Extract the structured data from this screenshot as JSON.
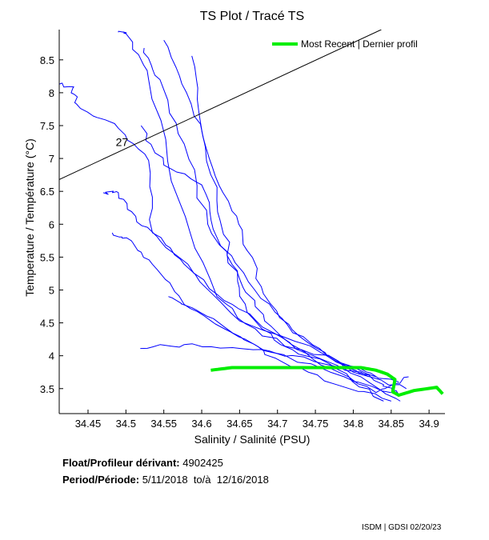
{
  "chart_data": {
    "type": "line",
    "title": "TS Plot / Tracé TS",
    "xlabel": "Salinity / Salinité (PSU)",
    "ylabel": "Temperature / Température (°C)",
    "xlim": [
      34.412,
      34.921
    ],
    "ylim": [
      3.12,
      8.96
    ],
    "xticks": [
      "34.45",
      "34.5",
      "34.55",
      "34.6",
      "34.65",
      "34.7",
      "34.75",
      "34.8",
      "34.85",
      "34.9"
    ],
    "yticks": [
      "3.5",
      "4",
      "4.5",
      "5",
      "5.5",
      "6",
      "6.5",
      "7",
      "7.5",
      "8",
      "8.5"
    ],
    "grid": false,
    "legend": {
      "position": "top-right",
      "entries": [
        {
          "name": "Most Recent | Dernier profil",
          "color": "#00ee00"
        }
      ]
    },
    "density_contour": {
      "label": "27",
      "points": [
        [
          34.412,
          6.68
        ],
        [
          34.837,
          8.96
        ]
      ],
      "label_at": [
        34.495,
        7.25
      ]
    },
    "series": [
      {
        "name": "profile",
        "color": "#0000ff",
        "points": [
          [
            34.49,
            8.92
          ],
          [
            34.5,
            8.9
          ],
          [
            34.53,
            8.2
          ],
          [
            34.57,
            6.36
          ],
          [
            34.62,
            4.9
          ],
          [
            34.68,
            4.3
          ],
          [
            34.78,
            3.92
          ],
          [
            34.84,
            3.56
          ],
          [
            34.86,
            3.4
          ]
        ]
      },
      {
        "name": "profile",
        "color": "#0000ff",
        "points": [
          [
            34.412,
            8.13
          ],
          [
            34.43,
            8.07
          ],
          [
            34.44,
            7.76
          ],
          [
            34.49,
            7.46
          ],
          [
            34.53,
            6.97
          ],
          [
            34.535,
            5.87
          ],
          [
            34.577,
            5.39
          ],
          [
            34.65,
            4.53
          ],
          [
            34.757,
            4.05
          ],
          [
            34.83,
            3.68
          ]
        ]
      },
      {
        "name": "profile",
        "color": "#0000ff",
        "points": [
          [
            34.47,
            6.48
          ],
          [
            34.49,
            6.48
          ],
          [
            34.513,
            6.12
          ],
          [
            34.545,
            5.75
          ],
          [
            34.61,
            5.02
          ],
          [
            34.672,
            4.53
          ],
          [
            34.735,
            4.05
          ],
          [
            34.82,
            3.68
          ]
        ]
      },
      {
        "name": "profile",
        "color": "#0000ff",
        "points": [
          [
            34.482,
            5.87
          ],
          [
            34.507,
            5.75
          ],
          [
            34.535,
            5.39
          ],
          [
            34.577,
            4.78
          ],
          [
            34.63,
            4.41
          ],
          [
            34.693,
            4.05
          ],
          [
            34.788,
            3.68
          ],
          [
            34.85,
            3.44
          ]
        ]
      },
      {
        "name": "profile",
        "color": "#0000ff",
        "points": [
          [
            34.519,
            4.11
          ],
          [
            34.577,
            4.17
          ],
          [
            34.651,
            4.11
          ],
          [
            34.735,
            3.98
          ],
          [
            34.81,
            3.68
          ],
          [
            34.862,
            3.31
          ]
        ]
      },
      {
        "name": "profile",
        "color": "#0000ff",
        "points": [
          [
            34.587,
            8.56
          ],
          [
            34.598,
            7.58
          ],
          [
            34.62,
            6.36
          ],
          [
            34.64,
            5.39
          ],
          [
            34.66,
            4.66
          ],
          [
            34.704,
            4.17
          ],
          [
            34.778,
            3.8
          ],
          [
            34.84,
            3.31
          ]
        ]
      },
      {
        "name": "profile",
        "color": "#0000ff",
        "points": [
          [
            34.524,
            8.68
          ],
          [
            34.545,
            8.2
          ],
          [
            34.577,
            7.22
          ],
          [
            34.608,
            6.0
          ],
          [
            34.651,
            5.14
          ],
          [
            34.683,
            4.53
          ],
          [
            34.757,
            3.86
          ],
          [
            34.83,
            3.44
          ],
          [
            34.873,
            3.68
          ]
        ]
      },
      {
        "name": "profile",
        "color": "#0000ff",
        "points": [
          [
            34.556,
            4.9
          ],
          [
            34.598,
            4.66
          ],
          [
            34.651,
            4.29
          ],
          [
            34.704,
            3.92
          ],
          [
            34.778,
            3.56
          ],
          [
            34.85,
            3.31
          ]
        ]
      },
      {
        "name": "profile",
        "color": "#0000ff",
        "points": [
          [
            34.55,
            8.8
          ],
          [
            34.58,
            8.0
          ],
          [
            34.61,
            7.0
          ],
          [
            34.64,
            6.2
          ],
          [
            34.66,
            5.6
          ],
          [
            34.69,
            4.8
          ],
          [
            34.74,
            4.2
          ],
          [
            34.8,
            3.75
          ],
          [
            34.87,
            3.5
          ]
        ]
      },
      {
        "name": "profile",
        "color": "#0000ff",
        "points": [
          [
            34.52,
            7.5
          ],
          [
            34.55,
            6.9
          ],
          [
            34.6,
            6.6
          ],
          [
            34.62,
            5.8
          ],
          [
            34.67,
            5.0
          ],
          [
            34.72,
            4.35
          ],
          [
            34.79,
            3.85
          ],
          [
            34.86,
            3.6
          ]
        ]
      },
      {
        "name": "Most Recent | Dernier profil",
        "color": "#00ee00",
        "points": [
          [
            34.612,
            3.78
          ],
          [
            34.64,
            3.82
          ],
          [
            34.81,
            3.82
          ],
          [
            34.83,
            3.78
          ],
          [
            34.845,
            3.72
          ],
          [
            34.855,
            3.64
          ],
          [
            34.852,
            3.45
          ],
          [
            34.86,
            3.4
          ],
          [
            34.88,
            3.47
          ],
          [
            34.91,
            3.52
          ],
          [
            34.918,
            3.42
          ]
        ]
      }
    ]
  },
  "info": {
    "float_label": "Float/Profileur dérivant:",
    "float_id": "4902425",
    "period_label": "Period/Période:",
    "period_start": "5/11/2018",
    "period_sep": "to/à",
    "period_end": "12/16/2018"
  },
  "footer": "ISDM | GDSI 02/20/23"
}
